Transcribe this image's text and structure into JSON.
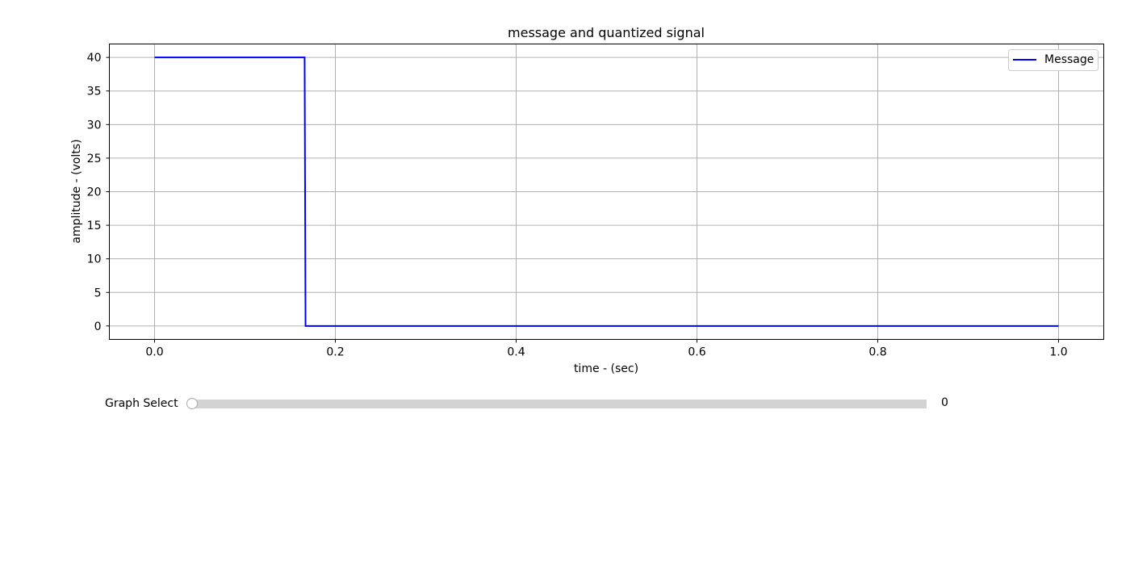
{
  "chart_data": {
    "type": "line",
    "title": "message and quantized signal",
    "xlabel": "time - (sec)",
    "ylabel": "amplitude - (volts)",
    "xlim": [
      -0.05,
      1.05
    ],
    "ylim": [
      -2,
      42
    ],
    "xticks": [
      0.0,
      0.2,
      0.4,
      0.6,
      0.8,
      1.0
    ],
    "xtick_labels": [
      "0.0",
      "0.2",
      "0.4",
      "0.6",
      "0.8",
      "1.0"
    ],
    "yticks": [
      0,
      5,
      10,
      15,
      20,
      25,
      30,
      35,
      40
    ],
    "ytick_labels": [
      "0",
      "5",
      "10",
      "15",
      "20",
      "25",
      "30",
      "35",
      "40"
    ],
    "grid": true,
    "legend_position": "top-right",
    "series": [
      {
        "name": "Message",
        "color": "#0000ff",
        "x": [
          0.0,
          0.166,
          0.167,
          1.0
        ],
        "y": [
          40,
          40,
          0,
          0
        ]
      }
    ]
  },
  "slider": {
    "label": "Graph Select",
    "value": 0,
    "value_text": "0",
    "min": 0,
    "max": 1
  }
}
